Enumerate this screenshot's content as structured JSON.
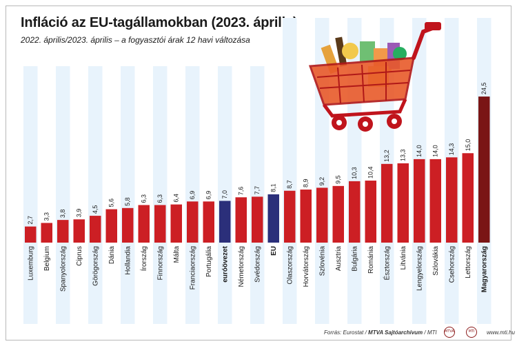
{
  "header": {
    "title": "Infláció az EU-tagállamokban (2023. április)",
    "subtitle": "2022. április/2023. április – a fogyasztói árak 12 havi változása"
  },
  "footer": {
    "source_prefix": "Forrás: Eurostat / ",
    "source_bold": "MTVA Sajtóarchívum",
    "source_suffix": " / MTI",
    "logo1": "MTVA",
    "logo2": "MTI",
    "url": "www.mti.hu"
  },
  "colors": {
    "bar": "#cc1f24",
    "highlight_aggregate": "#2b2f7a",
    "hungary": "#7a1515",
    "stripe": "#e8f3fc"
  },
  "icons": [
    "shopping-cart-icon"
  ],
  "chart_data": {
    "type": "bar",
    "title": "Infláció az EU-tagállamokban (2023. április)",
    "subtitle": "2022. április/2023. április – a fogyasztói árak 12 havi változása",
    "categories": [
      "Luxemburg",
      "Belgium",
      "Spanyolország",
      "Ciprus",
      "Görögország",
      "Dánia",
      "Hollandia",
      "Írország",
      "Finnország",
      "Málta",
      "Franciaország",
      "Portugália",
      "euróövezet",
      "Németország",
      "Svédország",
      "EU",
      "Olaszország",
      "Horvátország",
      "Szlovénia",
      "Ausztria",
      "Bulgária",
      "Románia",
      "Észtország",
      "Litvánia",
      "Lengyelország",
      "Szlovákia",
      "Csehország",
      "Lettország",
      "Magyarország"
    ],
    "values": [
      2.7,
      3.3,
      3.8,
      3.9,
      4.5,
      5.6,
      5.8,
      6.3,
      6.3,
      6.4,
      6.9,
      6.9,
      7.0,
      7.6,
      7.7,
      8.1,
      8.7,
      8.9,
      9.2,
      9.5,
      10.3,
      10.4,
      13.2,
      13.3,
      14.0,
      14.0,
      14.3,
      15.0,
      24.5
    ],
    "value_labels": [
      "2,7",
      "3,3",
      "3,8",
      "3,9",
      "4,5",
      "5,6",
      "5,8",
      "6,3",
      "6,3",
      "6,4",
      "6,9",
      "6,9",
      "7,0",
      "7,6",
      "7,7",
      "8,1",
      "8,7",
      "8,9",
      "9,2",
      "9,5",
      "10,3",
      "10,4",
      "13,2",
      "13,3",
      "14,0",
      "14,0",
      "14,3",
      "15,0",
      "24,5"
    ],
    "highlighted": [
      "euróövezet",
      "EU",
      "Magyarország"
    ],
    "xlabel": "",
    "ylabel": "",
    "ylim": [
      0,
      24.5
    ],
    "grid": false,
    "legend": "none"
  }
}
